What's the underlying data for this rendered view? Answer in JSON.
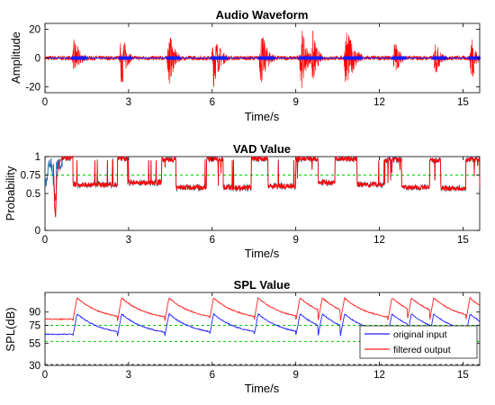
{
  "chart_data": [
    {
      "type": "line",
      "title": "Audio Waveform",
      "xlabel": "Time/s",
      "ylabel": "Amplitude",
      "xlim": [
        0,
        15.6
      ],
      "ylim": [
        -24,
        24
      ],
      "xticks": [
        "0",
        "3",
        "6",
        "9",
        "12",
        "15"
      ],
      "yticks": [
        "-20",
        "0",
        "20"
      ],
      "colors": {
        "raw": "#ff0000",
        "vad_marks": "#1a1aff"
      },
      "bursts": [
        {
          "t": 1.05,
          "amp": 15,
          "dur": 0.45
        },
        {
          "t": 2.75,
          "amp": 23,
          "dur": 0.35
        },
        {
          "t": 4.45,
          "amp": 22,
          "dur": 0.4
        },
        {
          "t": 6.05,
          "amp": 21,
          "dur": 0.5
        },
        {
          "t": 7.75,
          "amp": 21,
          "dur": 0.5
        },
        {
          "t": 9.2,
          "amp": 24,
          "dur": 0.4
        },
        {
          "t": 9.6,
          "amp": 22,
          "dur": 0.35
        },
        {
          "t": 10.8,
          "amp": 24,
          "dur": 0.6
        },
        {
          "t": 12.55,
          "amp": 14,
          "dur": 0.4
        },
        {
          "t": 14.0,
          "amp": 14,
          "dur": 0.4
        },
        {
          "t": 15.3,
          "amp": 21,
          "dur": 0.3
        }
      ]
    },
    {
      "type": "line",
      "title": "VAD Value",
      "xlabel": "Time/s",
      "ylabel": "Probability",
      "xlim": [
        0,
        15.6
      ],
      "ylim": [
        0,
        1
      ],
      "xticks": [
        "0",
        "3",
        "6",
        "9",
        "12",
        "15"
      ],
      "yticks": [
        "0",
        "0.5",
        "0.75",
        "1"
      ],
      "threshold": 0.75,
      "segments": [
        {
          "from": 0.6,
          "to": 1.0,
          "value": 0.98
        },
        {
          "from": 1.0,
          "to": 2.6,
          "value": 0.62
        },
        {
          "from": 2.6,
          "to": 3.0,
          "value": 0.98
        },
        {
          "from": 3.0,
          "to": 4.2,
          "value": 0.65
        },
        {
          "from": 4.2,
          "to": 4.7,
          "value": 0.96
        },
        {
          "from": 4.7,
          "to": 5.8,
          "value": 0.58
        },
        {
          "from": 5.8,
          "to": 6.4,
          "value": 0.97
        },
        {
          "from": 6.4,
          "to": 7.4,
          "value": 0.58
        },
        {
          "from": 7.4,
          "to": 8.0,
          "value": 0.97
        },
        {
          "from": 8.0,
          "to": 9.0,
          "value": 0.6
        },
        {
          "from": 9.0,
          "to": 9.8,
          "value": 0.97
        },
        {
          "from": 9.8,
          "to": 10.4,
          "value": 0.65
        },
        {
          "from": 10.4,
          "to": 11.2,
          "value": 0.97
        },
        {
          "from": 11.2,
          "to": 12.2,
          "value": 0.62
        },
        {
          "from": 12.2,
          "to": 12.8,
          "value": 0.96
        },
        {
          "from": 12.8,
          "to": 13.8,
          "value": 0.58
        },
        {
          "from": 13.8,
          "to": 14.2,
          "value": 0.95
        },
        {
          "from": 14.2,
          "to": 15.1,
          "value": 0.57
        },
        {
          "from": 15.1,
          "to": 15.6,
          "value": 0.96
        }
      ],
      "colors": {
        "original": "#1f77b4",
        "filtered": "#ff0000",
        "threshold": "#00cc00"
      }
    },
    {
      "type": "line",
      "title": "SPL Value",
      "xlabel": "Time/s",
      "ylabel": "SPL(dB)",
      "xlim": [
        0,
        15.6
      ],
      "ylim": [
        30,
        112
      ],
      "xticks": [
        "0",
        "3",
        "6",
        "9",
        "12",
        "15"
      ],
      "yticks": [
        "30",
        "55",
        "75",
        "90"
      ],
      "hlines": [
        {
          "y": 75,
          "color": "#00cc00"
        },
        {
          "y": 57,
          "color": "#00cc00"
        },
        {
          "y": 31,
          "color": "#555555"
        }
      ],
      "onsets": [
        1.0,
        2.6,
        4.3,
        5.9,
        7.5,
        9.0,
        9.8,
        10.6,
        12.3,
        13.0,
        13.8,
        15.1
      ],
      "series": [
        {
          "name": "original input",
          "color": "#2020ff",
          "base": 63,
          "peak": 88
        },
        {
          "name": "filtered output",
          "color": "#ff2020",
          "base": 80,
          "peak": 106
        }
      ],
      "legend": {
        "position": "bottom-right"
      }
    }
  ]
}
